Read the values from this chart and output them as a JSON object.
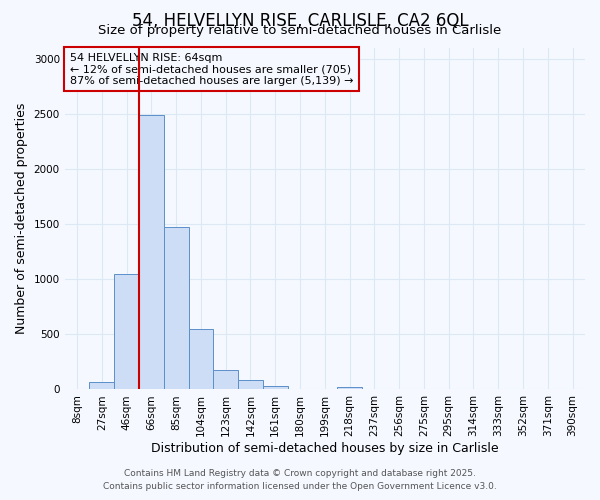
{
  "title": "54, HELVELLYN RISE, CARLISLE, CA2 6QL",
  "subtitle": "Size of property relative to semi-detached houses in Carlisle",
  "xlabel": "Distribution of semi-detached houses by size in Carlisle",
  "ylabel": "Number of semi-detached properties",
  "categories": [
    "8sqm",
    "27sqm",
    "46sqm",
    "66sqm",
    "85sqm",
    "104sqm",
    "123sqm",
    "142sqm",
    "161sqm",
    "180sqm",
    "199sqm",
    "218sqm",
    "237sqm",
    "256sqm",
    "275sqm",
    "295sqm",
    "314sqm",
    "333sqm",
    "352sqm",
    "371sqm",
    "390sqm"
  ],
  "values": [
    0,
    65,
    1050,
    2490,
    1470,
    550,
    175,
    90,
    35,
    0,
    0,
    20,
    0,
    0,
    0,
    0,
    0,
    0,
    0,
    0,
    0
  ],
  "bar_color": "#ccddf5",
  "bar_edge_color": "#5b8fc9",
  "property_line_x": 2.5,
  "property_line_color": "#cc0000",
  "annotation_line1": "54 HELVELLYN RISE: 64sqm",
  "annotation_line2": "← 12% of semi-detached houses are smaller (705)",
  "annotation_line3": "87% of semi-detached houses are larger (5,139) →",
  "annotation_box_color": "#cc0000",
  "ylim": [
    0,
    3100
  ],
  "yticks": [
    0,
    500,
    1000,
    1500,
    2000,
    2500,
    3000
  ],
  "footer_line1": "Contains HM Land Registry data © Crown copyright and database right 2025.",
  "footer_line2": "Contains public sector information licensed under the Open Government Licence v3.0.",
  "background_color": "#f5f8ff",
  "grid_color": "#dde8f5",
  "title_fontsize": 12,
  "subtitle_fontsize": 9.5,
  "axis_label_fontsize": 9,
  "tick_fontsize": 7.5,
  "footer_fontsize": 6.5,
  "annotation_fontsize": 8
}
